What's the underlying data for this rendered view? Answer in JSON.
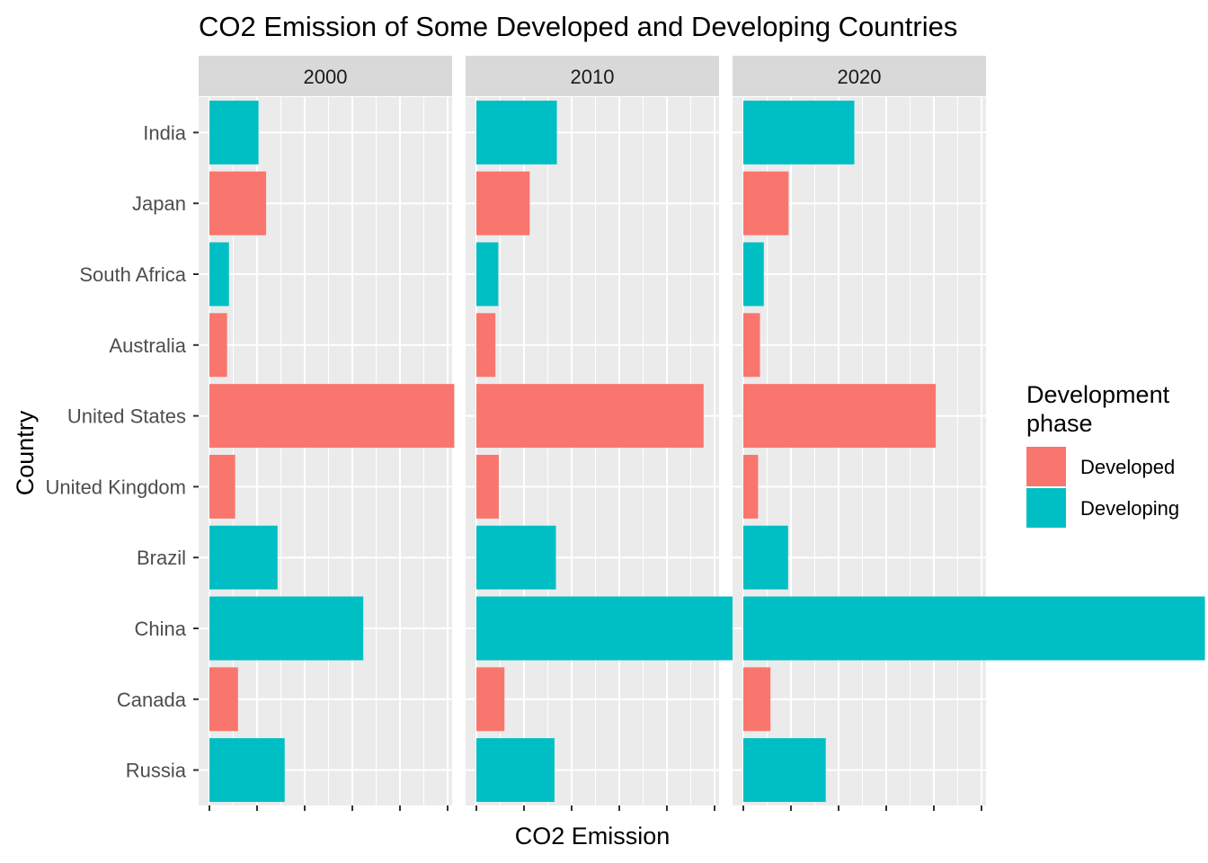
{
  "chart_data": {
    "type": "bar",
    "orientation": "horizontal",
    "title": "CO2 Emission of Some Developed and Developing Countries",
    "xlabel": "CO2 Emission",
    "ylabel": "Country",
    "xlim": [
      0,
      11000
    ],
    "grid": true,
    "legend_placement": "right",
    "legend": {
      "title_lines": [
        "Development",
        "phase"
      ],
      "entries": [
        {
          "name": "Developed",
          "color": "#F8766D"
        },
        {
          "name": "Developing",
          "color": "#00BFC4"
        }
      ]
    },
    "categories": [
      "India",
      "Japan",
      "South Africa",
      "Australia",
      "United States",
      "United Kingdom",
      "Brazil",
      "China",
      "Canada",
      "Russia"
    ],
    "phases": [
      "Developing",
      "Developed",
      "Developing",
      "Developed",
      "Developed",
      "Developed",
      "Developing",
      "Developing",
      "Developed",
      "Developing"
    ],
    "facets": [
      {
        "label": "2000",
        "values": [
          1030,
          1190,
          410,
          370,
          5140,
          540,
          1430,
          3230,
          600,
          1580
        ]
      },
      {
        "label": "2010",
        "values": [
          1690,
          1120,
          460,
          400,
          4770,
          470,
          1670,
          7710,
          590,
          1640
        ]
      },
      {
        "label": "2020",
        "values": [
          2330,
          950,
          430,
          350,
          4040,
          310,
          940,
          9690,
          570,
          1730
        ]
      }
    ]
  }
}
